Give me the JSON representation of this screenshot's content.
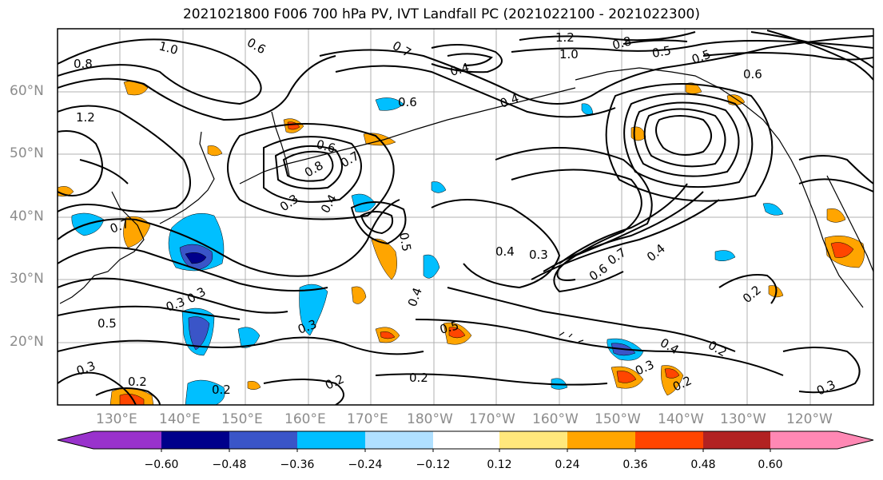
{
  "title": "2021021800 F006 700 hPa PV, IVT Landfall PC (2021022100 - 2021022300)",
  "lat_labels": [
    "60°N",
    "50°N",
    "40°N",
    "30°N",
    "20°N"
  ],
  "lon_labels": [
    "130°E",
    "140°E",
    "150°E",
    "160°E",
    "170°E",
    "180°W",
    "170°W",
    "160°W",
    "150°W",
    "140°W",
    "130°W",
    "120°W"
  ],
  "colorbar": {
    "tick_labels": [
      "−0.60",
      "−0.48",
      "−0.36",
      "−0.24",
      "−0.12",
      "0.12",
      "0.24",
      "0.36",
      "0.48",
      "0.60"
    ],
    "colors": [
      "#9932cc",
      "#00008b",
      "#3a55c8",
      "#00bfff",
      "#b0e0ff",
      "#ffffff",
      "#ffe87c",
      "#ffa500",
      "#ff4500",
      "#b22222",
      "#ff88b4"
    ]
  },
  "contour_labels": [
    "1.0",
    "0.6",
    "0.8",
    "1.2",
    "1.2",
    "1.0",
    "0.8",
    "0.5",
    "0.5",
    "0.6",
    "0.7",
    "0.4",
    "0.6",
    "0.4",
    "0.6",
    "0.8",
    "0.7",
    "0.3",
    "0.4",
    "0.5",
    "0.3",
    "0.7",
    "0.6",
    "0.4",
    "0.7",
    "0.4",
    "0.5",
    "0.3",
    "0.4",
    "0.3",
    "0.2",
    "0.2",
    "0.2",
    "0.3",
    "0.2",
    "0.3",
    "0.2",
    "0.5",
    "0.4",
    "0.2",
    "0.2",
    "0.3",
    "0.3"
  ]
}
